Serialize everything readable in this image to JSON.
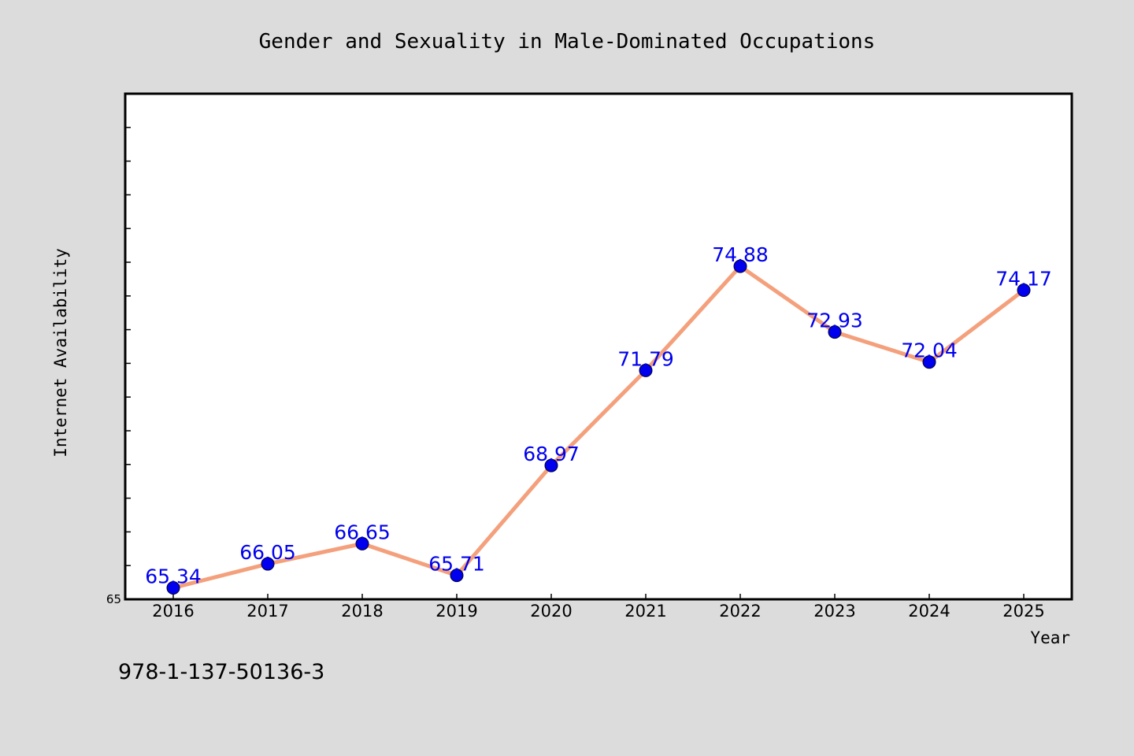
{
  "chart_data": {
    "type": "line",
    "title": "Gender and Sexuality in Male-Dominated Occupations",
    "xlabel": "Year",
    "ylabel": "Internet Availability",
    "categories": [
      "2016",
      "2017",
      "2018",
      "2019",
      "2020",
      "2021",
      "2022",
      "2023",
      "2024",
      "2025"
    ],
    "series": [
      {
        "values": [
          65.34,
          66.05,
          66.65,
          65.71,
          68.97,
          71.79,
          74.88,
          72.93,
          72.04,
          74.17
        ],
        "data_labels": [
          "65.34",
          "66.05",
          "66.65",
          "65.71",
          "68.97",
          "71.79",
          "74.88",
          "72.93",
          "72.04",
          "74.17"
        ],
        "line_color": "#f4a07c",
        "marker_color": "#0000ee",
        "label_color": "#0000ee"
      }
    ],
    "ylim": [
      65,
      80
    ],
    "y_tick_labels": [
      "65"
    ],
    "grid": false,
    "legend": "none"
  },
  "footer_text": "978-1-137-50136-3",
  "colors": {
    "background": "#dcdcdc",
    "plot_background": "#ffffff",
    "axes": "#000000"
  }
}
